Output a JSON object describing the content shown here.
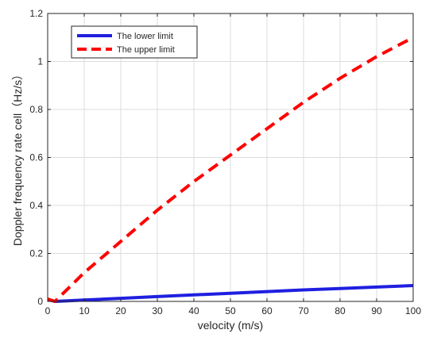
{
  "chart_data": {
    "type": "line",
    "title": "",
    "xlabel": "velocity (m/s)",
    "ylabel": "Doppler frequency rate cell（Hz/s）",
    "xlim": [
      0,
      100
    ],
    "ylim": [
      0,
      1.2
    ],
    "xticks": [
      0,
      10,
      20,
      30,
      40,
      50,
      60,
      70,
      80,
      90,
      100
    ],
    "yticks": [
      0,
      0.2,
      0.4,
      0.6,
      0.8,
      1,
      1.2
    ],
    "xtick_labels": [
      "0",
      "10",
      "20",
      "30",
      "40",
      "50",
      "60",
      "70",
      "80",
      "90",
      "100"
    ],
    "ytick_labels": [
      "0",
      "0.2",
      "0.4",
      "0.6",
      "0.8",
      "1",
      "1.2"
    ],
    "grid": true,
    "legend_position": "top-left",
    "series": [
      {
        "name": "The lower limit",
        "color": "#1f1fe0",
        "style": "solid",
        "x": [
          0,
          2,
          10,
          20,
          30,
          40,
          50,
          60,
          70,
          80,
          90,
          100
        ],
        "y": [
          0.008,
          0.0,
          0.006,
          0.013,
          0.02,
          0.027,
          0.034,
          0.041,
          0.048,
          0.054,
          0.06,
          0.066
        ]
      },
      {
        "name": "The upper limit",
        "color": "#ff0000",
        "style": "dashed",
        "x": [
          0,
          2,
          10,
          20,
          30,
          40,
          50,
          60,
          70,
          80,
          90,
          100
        ],
        "y": [
          0.01,
          0.0,
          0.12,
          0.25,
          0.38,
          0.5,
          0.61,
          0.72,
          0.83,
          0.93,
          1.02,
          1.1
        ]
      }
    ]
  }
}
